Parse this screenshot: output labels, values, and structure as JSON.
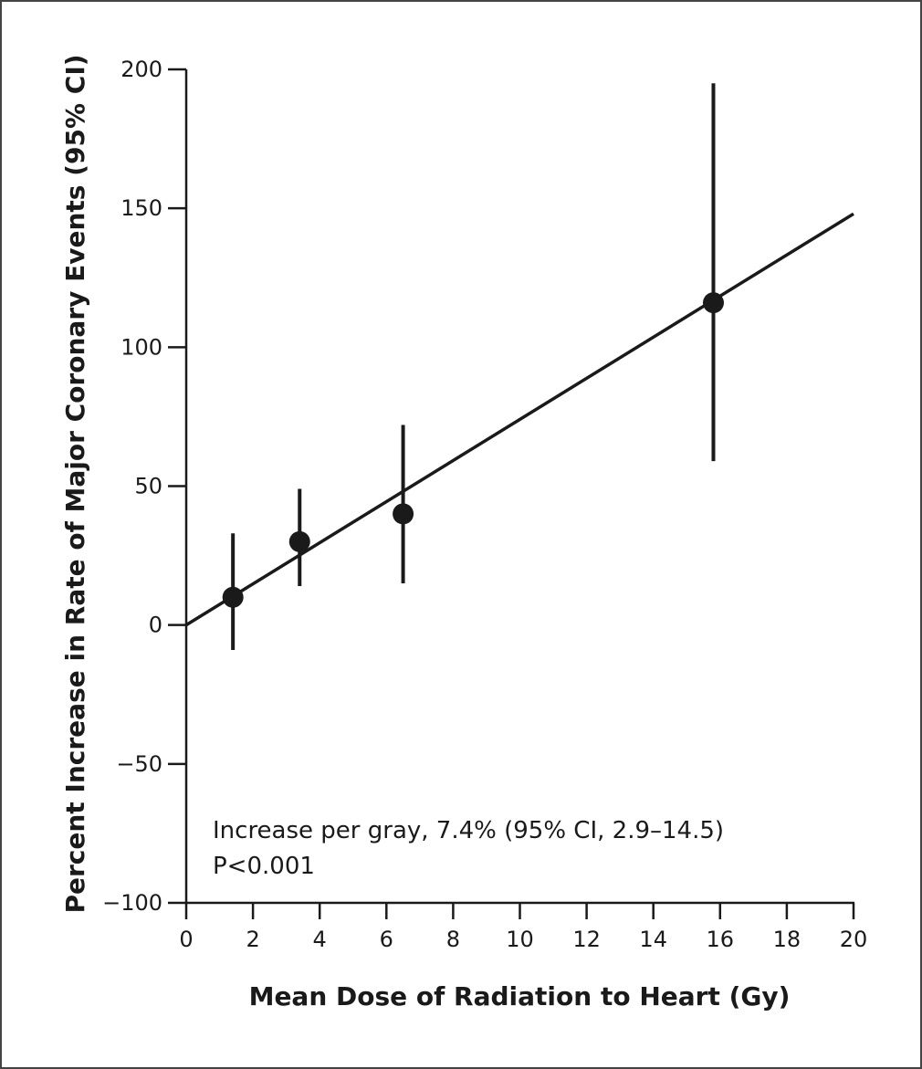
{
  "chart_data": {
    "type": "scatter",
    "xlabel": "Mean Dose of Radiation to Heart (Gy)",
    "ylabel": "Percent Increase in Rate of Major Coronary Events (95% CI)",
    "xlim": [
      0,
      20
    ],
    "ylim": [
      -100,
      200
    ],
    "x_ticks": [
      0,
      2,
      4,
      6,
      8,
      10,
      12,
      14,
      16,
      18,
      20
    ],
    "y_ticks": [
      -100,
      -50,
      0,
      50,
      100,
      150,
      200
    ],
    "y_tick_labels": [
      "−100",
      "−50",
      "0",
      "50",
      "100",
      "150",
      "200"
    ],
    "points": [
      {
        "x": 1.4,
        "y": 10,
        "ci_low": -9,
        "ci_high": 33
      },
      {
        "x": 3.4,
        "y": 30,
        "ci_low": 14,
        "ci_high": 49
      },
      {
        "x": 6.5,
        "y": 40,
        "ci_low": 15,
        "ci_high": 72
      },
      {
        "x": 15.8,
        "y": 116,
        "ci_low": 59,
        "ci_high": 195
      }
    ],
    "fit_line": {
      "x": [
        0,
        20
      ],
      "y": [
        0,
        148
      ]
    },
    "annotation": [
      "Increase per gray, 7.4% (95% CI, 2.9–14.5)",
      "P<0.001"
    ],
    "grid": false,
    "legend": "none",
    "colors": {
      "marks": "#1a1a1a",
      "frame": "#444444"
    }
  }
}
